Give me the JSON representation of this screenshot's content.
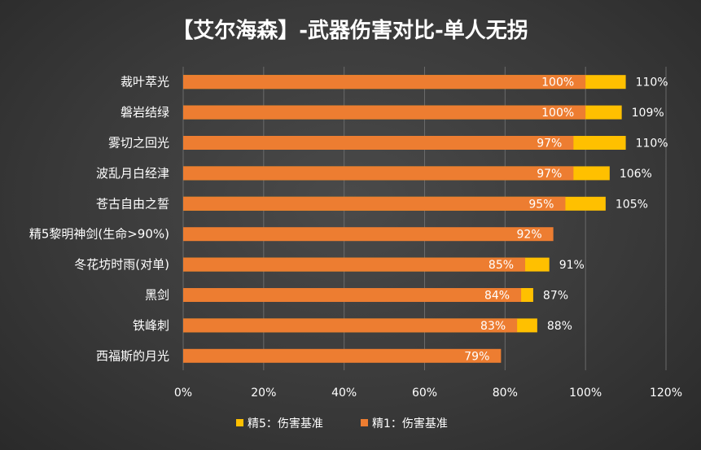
{
  "chart_data": {
    "type": "bar",
    "orientation": "horizontal",
    "title": "【艾尔海森】-武器伤害对比-单人无拐",
    "categories": [
      "裁叶萃光",
      "磐岩结绿",
      "雾切之回光",
      "波乱月白经津",
      "苍古自由之誓",
      "精5黎明神剑(生命>90%)",
      "冬花坊时雨(对单)",
      "黑剑",
      "铁峰刺",
      "西福斯的月光"
    ],
    "series": [
      {
        "name": "精1：伤害基准",
        "color": "#ED7D31",
        "values": [
          100,
          100,
          97,
          97,
          95,
          92,
          85,
          84,
          83,
          79
        ],
        "labels": [
          "100%",
          "100%",
          "97%",
          "97%",
          "95%",
          "92%",
          "85%",
          "84%",
          "83%",
          "79%"
        ]
      },
      {
        "name": "精5：伤害基准",
        "color": "#FFC000",
        "values": [
          110,
          109,
          110,
          106,
          105,
          null,
          91,
          87,
          88,
          null
        ],
        "labels": [
          "110%",
          "109%",
          "110%",
          "106%",
          "105%",
          "",
          "91%",
          "87%",
          "88%",
          ""
        ]
      }
    ],
    "xlim": [
      0,
      120
    ],
    "xticks": [
      "0%",
      "20%",
      "40%",
      "60%",
      "80%",
      "100%",
      "120%"
    ],
    "xlabel": "",
    "ylabel": "",
    "legend_position": "bottom",
    "grid": true
  }
}
